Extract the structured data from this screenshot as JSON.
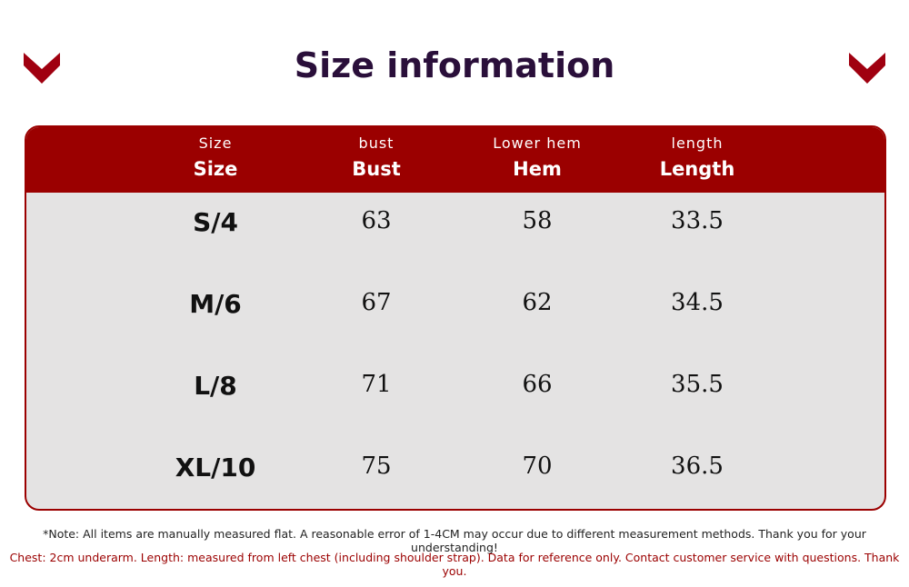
{
  "header": {
    "title": "Size information"
  },
  "table": {
    "columns": [
      {
        "small": "Size",
        "label": "Size"
      },
      {
        "small": "bust",
        "label": "Bust"
      },
      {
        "small": "Lower hem",
        "label": "Hem"
      },
      {
        "small": "length",
        "label": "Length"
      }
    ],
    "rows": [
      [
        "S/4",
        "63",
        "58",
        "33.5"
      ],
      [
        "M/6",
        "67",
        "62",
        "34.5"
      ],
      [
        "L/8",
        "71",
        "66",
        "35.5"
      ],
      [
        "XL/10",
        "75",
        "70",
        "36.5"
      ]
    ]
  },
  "notes": [
    "*Note: All items are manually measured flat. A reasonable error of 1-4CM may occur due to different measurement methods. Thank you for your understanding!",
    "Chest: 2cm underarm. Length: measured from left chest (including shoulder strap). Data for reference only. Contact customer service with questions. Thank you."
  ]
}
